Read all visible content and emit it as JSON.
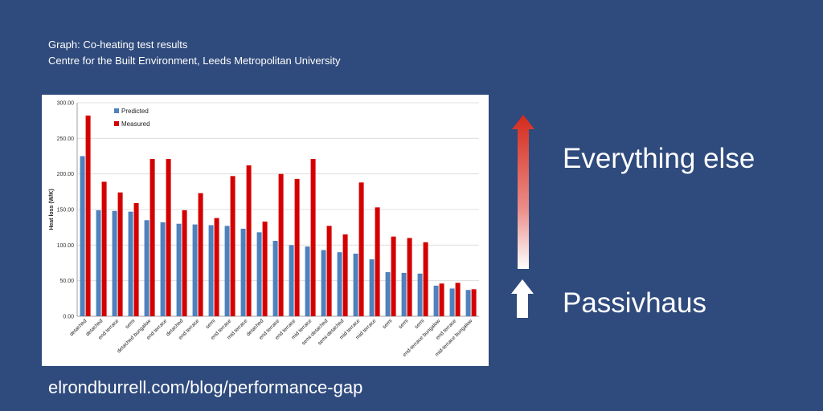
{
  "header": {
    "line1": "Graph: Co-heating test results",
    "line2": "Centre for the Built Environment, Leeds Metropolitan University"
  },
  "labels": {
    "everything_else": "Everything else",
    "passivhaus": "Passivhaus"
  },
  "footer": {
    "url": "elrondburrell.com/blog/performance-gap"
  },
  "colors": {
    "background": "#2f4a7c",
    "predicted": "#4f81bd",
    "measured": "#d40000",
    "arrow_top": "#d42a1c",
    "arrow_white": "#ffffff"
  },
  "chart_data": {
    "type": "bar",
    "title": "",
    "xlabel": "",
    "ylabel": "Heat loss (W/K)",
    "ylim": [
      0,
      300
    ],
    "yticks": [
      "0.00",
      "50.00",
      "100.00",
      "150.00",
      "200.00",
      "250.00",
      "300.00"
    ],
    "legend_position": "top-left",
    "categories": [
      "detached",
      "detached",
      "end terrace",
      "semi",
      "detached bungalow",
      "end terrace",
      "detached",
      "end terrace",
      "semi",
      "end terrace",
      "mid terrace",
      "detached",
      "end terrace",
      "end terrace",
      "mid terrace",
      "semi-detached",
      "semi-detached",
      "mid terrace",
      "mid terrace",
      "semi",
      "semi",
      "semi",
      "end-terrace bungalow",
      "end terrace",
      "mid-terrace bungalow"
    ],
    "series": [
      {
        "name": "Predicted",
        "color": "#4f81bd",
        "values": [
          225,
          149,
          148,
          147,
          135,
          132,
          130,
          129,
          128,
          127,
          123,
          118,
          106,
          100,
          98,
          93,
          90,
          88,
          80,
          62,
          61,
          60,
          43,
          39,
          37
        ]
      },
      {
        "name": "Measured",
        "color": "#d40000",
        "values": [
          282,
          189,
          174,
          159,
          221,
          221,
          149,
          173,
          138,
          197,
          212,
          133,
          200,
          193,
          221,
          127,
          115,
          188,
          153,
          112,
          110,
          104,
          46,
          47,
          38
        ]
      }
    ]
  }
}
